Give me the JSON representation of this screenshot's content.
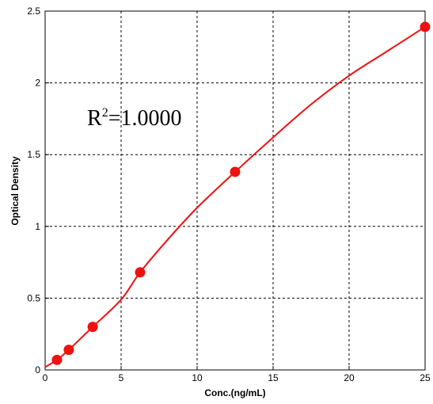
{
  "chart_data": {
    "type": "scatter",
    "xlabel": "Conc.(ng/mL)",
    "ylabel": "Optical Density",
    "xlim": [
      0,
      25
    ],
    "ylim": [
      0,
      2.5
    ],
    "xticks": [
      0,
      5,
      10,
      15,
      20,
      25
    ],
    "yticks": [
      0,
      0.5,
      1,
      1.5,
      2,
      2.5
    ],
    "xtick_labels": [
      "0",
      "5",
      "10",
      "15",
      "20",
      "25"
    ],
    "ytick_labels": [
      "0",
      "0.5",
      "1",
      "1.5",
      "2",
      "2.5"
    ],
    "grid": true,
    "annotation": {
      "prefix": "R",
      "sup": "2",
      "suffix": "=1.0000"
    },
    "points": {
      "x": [
        0.78,
        1.56,
        3.13,
        6.25,
        12.5,
        25
      ],
      "y": [
        0.07,
        0.14,
        0.3,
        0.68,
        1.38,
        2.39
      ]
    },
    "fit_curve": {
      "x": [
        0,
        0.78,
        1.56,
        3.13,
        5,
        6.25,
        8,
        10,
        12.5,
        15,
        17.5,
        20,
        22.5,
        25
      ],
      "y": [
        0.02,
        0.07,
        0.14,
        0.3,
        0.49,
        0.68,
        0.9,
        1.13,
        1.38,
        1.62,
        1.85,
        2.05,
        2.22,
        2.39
      ]
    },
    "colors": {
      "series": "#ee1111",
      "grid": "#000000",
      "axis": "#000000"
    }
  }
}
